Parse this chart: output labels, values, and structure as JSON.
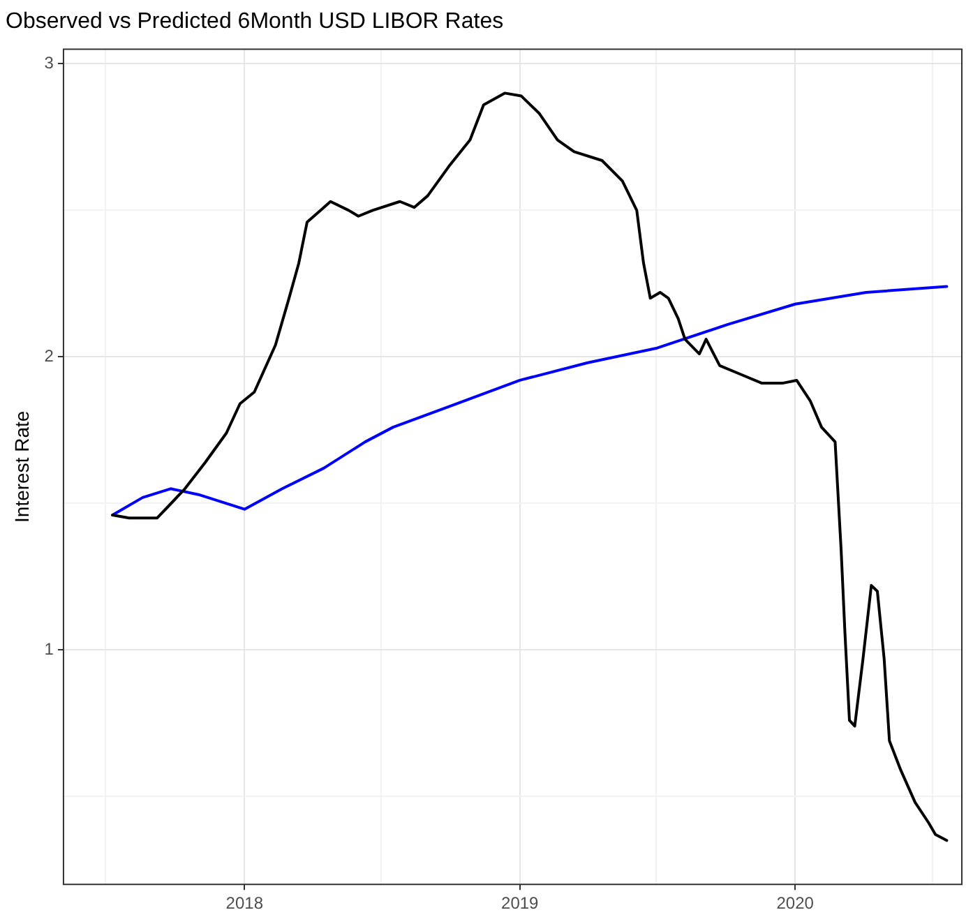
{
  "chart_data": {
    "type": "line",
    "title": "Observed vs Predicted 6Month USD LIBOR Rates",
    "ylabel": "Interest Rate",
    "xlim": [
      "2017-05-06",
      "2020-08-09"
    ],
    "xticks": [
      {
        "value": "2017-07-01",
        "label": null
      },
      {
        "value": "2018-01-01",
        "label": "2018"
      },
      {
        "value": "2018-07-01",
        "label": null
      },
      {
        "value": "2019-01-01",
        "label": "2019"
      },
      {
        "value": "2019-07-01",
        "label": null
      },
      {
        "value": "2020-01-01",
        "label": "2020"
      },
      {
        "value": "2020-07-01",
        "label": null
      }
    ],
    "ylim": [
      0.2,
      3.05
    ],
    "yticks": [
      {
        "value": 0.5,
        "label": null
      },
      1,
      {
        "value": 1.5,
        "label": null
      },
      2,
      {
        "value": 2.5,
        "label": null
      },
      3
    ],
    "grid": true,
    "legend": false,
    "marker": "none",
    "line_style": "solid",
    "series": [
      {
        "color": "#000000",
        "x": [
          "2017-07-10",
          "2017-08-01",
          "2017-09-07",
          "2017-09-22",
          "2017-10-14",
          "2017-11-10",
          "2017-12-08",
          "2017-12-26",
          "2018-01-14",
          "2018-02-11",
          "2018-03-01",
          "2018-03-14",
          "2018-03-25",
          "2018-04-12",
          "2018-04-25",
          "2018-05-19",
          "2018-06-01",
          "2018-06-20",
          "2018-07-26",
          "2018-08-14",
          "2018-09-01",
          "2018-09-29",
          "2018-10-27",
          "2018-11-14",
          "2018-12-12",
          "2019-01-03",
          "2019-01-27",
          "2019-02-20",
          "2019-03-14",
          "2019-04-20",
          "2019-05-17",
          "2019-06-05",
          "2019-06-14",
          "2019-06-23",
          "2019-07-06",
          "2019-07-17",
          "2019-07-30",
          "2019-08-08",
          "2019-08-27",
          "2019-09-05",
          "2019-09-23",
          "2019-10-21",
          "2019-11-18",
          "2019-12-15",
          "2020-01-03",
          "2020-01-21",
          "2020-02-05",
          "2020-02-23",
          "2020-03-02",
          "2020-03-07",
          "2020-03-13",
          "2020-03-20",
          "2020-03-31",
          "2020-04-11",
          "2020-04-19",
          "2020-04-28",
          "2020-05-05",
          "2020-05-20",
          "2020-06-08",
          "2020-06-26",
          "2020-07-05",
          "2020-07-20"
        ],
        "values": [
          1.46,
          1.45,
          1.45,
          1.49,
          1.55,
          1.64,
          1.74,
          1.84,
          1.88,
          2.04,
          2.2,
          2.32,
          2.46,
          2.5,
          2.53,
          2.5,
          2.48,
          2.5,
          2.53,
          2.51,
          2.55,
          2.65,
          2.74,
          2.86,
          2.9,
          2.89,
          2.83,
          2.74,
          2.7,
          2.67,
          2.6,
          2.5,
          2.32,
          2.2,
          2.22,
          2.2,
          2.13,
          2.06,
          2.01,
          2.06,
          1.97,
          1.94,
          1.91,
          1.91,
          1.92,
          1.85,
          1.76,
          1.71,
          1.34,
          1.06,
          0.76,
          0.74,
          0.97,
          1.22,
          1.2,
          0.97,
          0.69,
          0.59,
          0.48,
          0.41,
          0.37,
          0.35
        ]
      },
      {
        "color": "#0000ff",
        "x": [
          "2017-07-10",
          "2017-08-19",
          "2017-09-25",
          "2017-11-01",
          "2017-12-08",
          "2018-01-01",
          "2018-02-20",
          "2018-04-16",
          "2018-06-10",
          "2018-07-17",
          "2018-09-29",
          "2019-01-01",
          "2019-04-01",
          "2019-07-02",
          "2019-10-03",
          "2020-01-01",
          "2020-04-04",
          "2020-07-20"
        ],
        "values": [
          1.46,
          1.52,
          1.55,
          1.53,
          1.5,
          1.48,
          1.55,
          1.62,
          1.71,
          1.76,
          1.83,
          1.92,
          1.98,
          2.03,
          2.11,
          2.18,
          2.22,
          2.24
        ]
      }
    ]
  }
}
